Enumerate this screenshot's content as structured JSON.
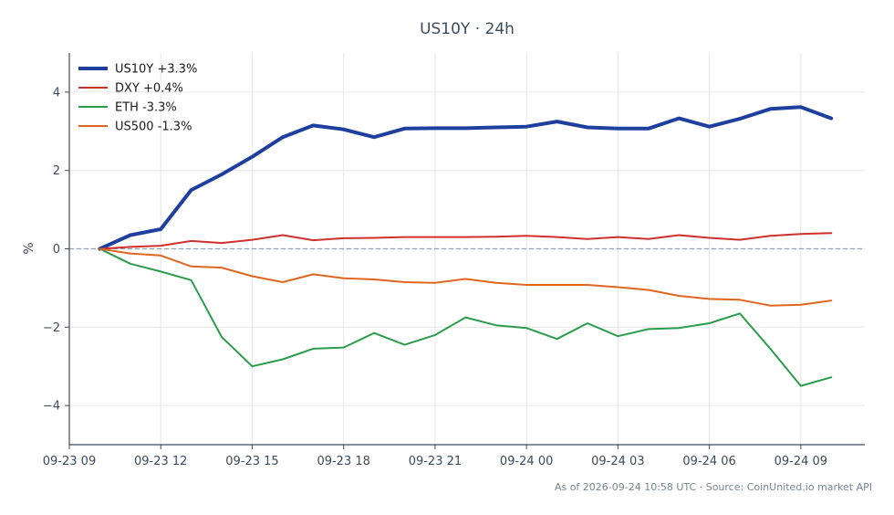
{
  "chart_data": {
    "type": "line",
    "title": "US10Y · 24h",
    "ylabel": "%",
    "xlabel": "",
    "ylim": [
      -5,
      5
    ],
    "xlim": [
      -1.0,
      25.1
    ],
    "grid": true,
    "zero_line": true,
    "legend_position": "top-left",
    "footer": "As of 2026-09-24 10:58 UTC · Source: CoinUnited.io market API",
    "x_ticks": [
      {
        "x": -1,
        "label": "09-23 09"
      },
      {
        "x": 2,
        "label": "09-23 12"
      },
      {
        "x": 5,
        "label": "09-23 15"
      },
      {
        "x": 8,
        "label": "09-23 18"
      },
      {
        "x": 11,
        "label": "09-23 21"
      },
      {
        "x": 14,
        "label": "09-24 00"
      },
      {
        "x": 17,
        "label": "09-24 03"
      },
      {
        "x": 20,
        "label": "09-24 06"
      },
      {
        "x": 23,
        "label": "09-24 09"
      }
    ],
    "y_ticks": [
      {
        "y": 4,
        "label": "4"
      },
      {
        "y": 2,
        "label": "2"
      },
      {
        "y": 0,
        "label": "0"
      },
      {
        "y": -2,
        "label": "−2"
      },
      {
        "y": -4,
        "label": "−4"
      }
    ],
    "x": [
      0,
      1,
      2,
      3,
      4,
      5,
      6,
      7,
      8,
      9,
      10,
      11,
      12,
      13,
      14,
      15,
      16,
      17,
      18,
      19,
      20,
      21,
      22,
      23,
      24
    ],
    "series": [
      {
        "name": "US10Y +3.3%",
        "color": "#1f3f9e",
        "width": 4,
        "values": [
          0.0,
          0.35,
          0.5,
          1.5,
          1.9,
          2.35,
          2.85,
          3.15,
          3.05,
          2.85,
          3.07,
          3.08,
          3.08,
          3.1,
          3.12,
          3.25,
          3.1,
          3.07,
          3.07,
          3.33,
          3.12,
          3.32,
          3.57,
          3.62,
          3.33
        ]
      },
      {
        "name": "DXY +0.4%",
        "color": "#d0302d",
        "width": 2,
        "values": [
          0.0,
          0.05,
          0.08,
          0.2,
          0.15,
          0.23,
          0.35,
          0.22,
          0.27,
          0.28,
          0.3,
          0.3,
          0.3,
          0.31,
          0.33,
          0.3,
          0.25,
          0.3,
          0.25,
          0.35,
          0.28,
          0.23,
          0.33,
          0.38,
          0.4
        ]
      },
      {
        "name": "ETH -3.3%",
        "color": "#2a9d4a",
        "width": 2,
        "values": [
          0.0,
          -0.38,
          -0.58,
          -0.8,
          -2.25,
          -3.0,
          -2.82,
          -2.55,
          -2.52,
          -2.15,
          -2.45,
          -2.2,
          -1.75,
          -1.95,
          -2.02,
          -2.3,
          -1.9,
          -2.23,
          -2.05,
          -2.02,
          -1.9,
          -1.65,
          -2.55,
          -3.5,
          -3.28
        ]
      },
      {
        "name": "US500 -1.3%",
        "color": "#e0661f",
        "width": 2,
        "values": [
          0.0,
          -0.12,
          -0.17,
          -0.45,
          -0.48,
          -0.7,
          -0.85,
          -0.65,
          -0.75,
          -0.78,
          -0.85,
          -0.87,
          -0.77,
          -0.87,
          -0.92,
          -0.92,
          -0.92,
          -0.98,
          -1.05,
          -1.2,
          -1.28,
          -1.3,
          -1.45,
          -1.43,
          -1.32
        ]
      }
    ]
  },
  "colors": {
    "axis": "#3d4b5c",
    "grid": "#e6e6e6",
    "zero_line": "#8fa3b5"
  }
}
